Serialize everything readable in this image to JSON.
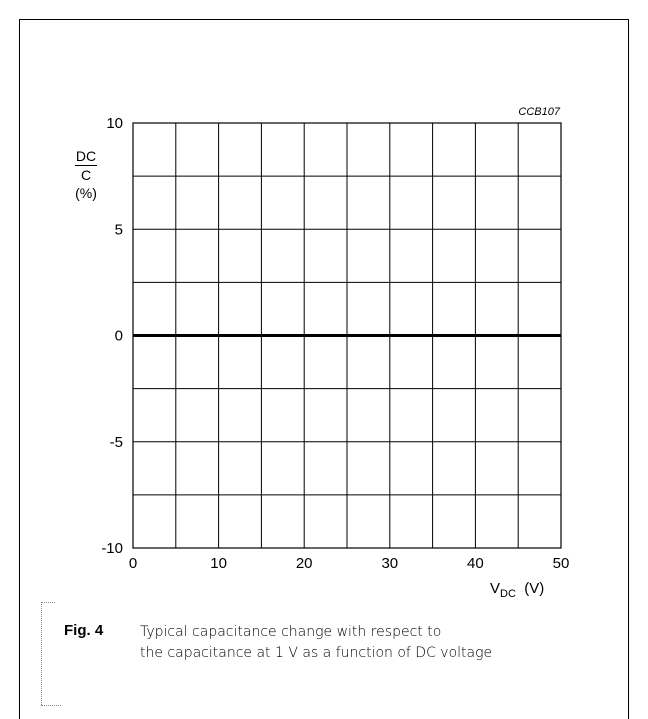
{
  "chart_data": {
    "type": "line",
    "title": "",
    "chart_code": "CCB107",
    "xlabel_main": "V",
    "xlabel_sub": "DC",
    "xlabel_unit": "(V)",
    "ylabel_numerator": "DC",
    "ylabel_denominator": "C",
    "ylabel_unit": "(%)",
    "xlim": [
      0,
      50
    ],
    "ylim": [
      -10,
      10
    ],
    "x_ticks": [
      0,
      10,
      20,
      30,
      40,
      50
    ],
    "y_ticks": [
      10,
      5,
      0,
      -5,
      -10
    ],
    "x_grid": [
      0,
      5,
      10,
      15,
      20,
      25,
      30,
      35,
      40,
      45,
      50
    ],
    "y_grid": [
      -10,
      -7.5,
      -5,
      -2.5,
      0,
      2.5,
      5,
      7.5,
      10
    ],
    "grid": true,
    "series": [
      {
        "x": [
          0,
          50
        ],
        "y": [
          0,
          0
        ]
      }
    ]
  },
  "caption": {
    "label": "Fig. 4",
    "line1": "Typical capacitance change with respect to",
    "line2": "the capacitance at 1 V as a function of DC voltage"
  }
}
